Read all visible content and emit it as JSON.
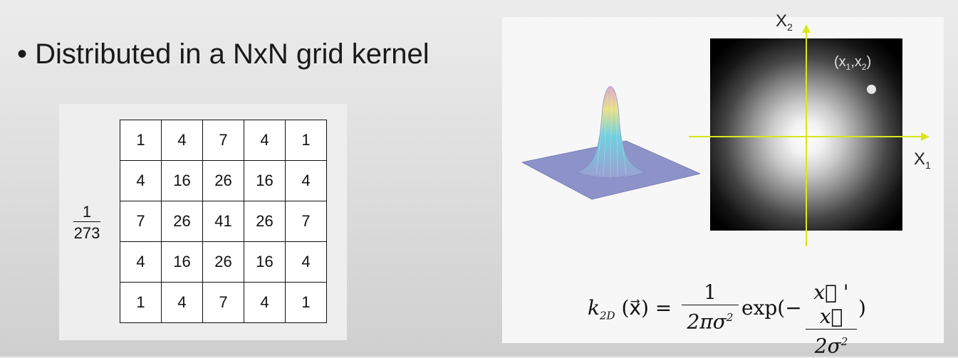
{
  "bullet_text": "• Distributed in a NxN grid kernel",
  "kernel": {
    "fraction_numerator": "1",
    "fraction_denominator": "273",
    "rows": [
      [
        "1",
        "4",
        "7",
        "4",
        "1"
      ],
      [
        "4",
        "16",
        "26",
        "16",
        "4"
      ],
      [
        "7",
        "26",
        "41",
        "26",
        "7"
      ],
      [
        "4",
        "16",
        "26",
        "16",
        "4"
      ],
      [
        "1",
        "4",
        "7",
        "4",
        "1"
      ]
    ]
  },
  "figure": {
    "x2_label_base": "X",
    "x2_label_sub": "2",
    "x1_label_base": "X",
    "x1_label_sub": "1",
    "point_label_open": "(x",
    "point_label_sub1": "1",
    "point_label_comma": ",x",
    "point_label_sub2": "2",
    "point_label_close": ")",
    "axis_color": "#d8e61c",
    "surface_color": "#8a8fc4"
  },
  "formula": {
    "lhs_k": "k",
    "lhs_sub": "2D",
    "lhs_arg": "(x⃗) =",
    "frac1_num": "1",
    "frac1_den": "2πσ",
    "frac1_den_sup": "2",
    "exp_text": "exp(−",
    "frac2_num": "x⃗ ' x⃗",
    "frac2_den": "2σ",
    "frac2_den_sup": "2",
    "close_text": ")"
  }
}
